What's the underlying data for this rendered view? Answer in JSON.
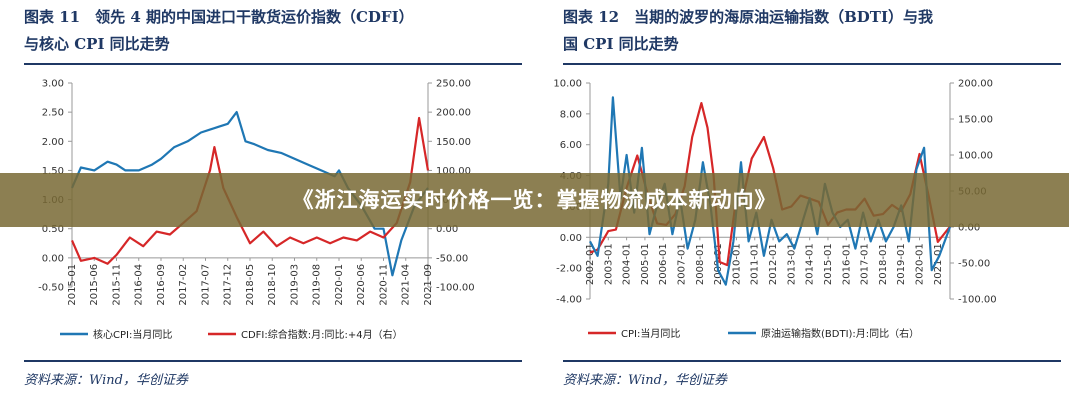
{
  "banner": {
    "text": "《浙江海运实时价格一览：掌握物流成本新动向》"
  },
  "colors": {
    "blue": "#1f77b4",
    "red": "#d62728",
    "navy": "#1f3864",
    "banner": "#786834"
  },
  "charts": [
    {
      "fig_title_line1": "图表 11　领先 4 期的中国进口干散货运价指数（CDFI）",
      "fig_title_line2": "与核心 CPI 同比走势",
      "source": "资料来源：Wind，华创证券"
    },
    {
      "fig_title_line1": "图表 12　当期的波罗的海原油运输指数（BDTI）与我",
      "fig_title_line2": "国 CPI 同比走势",
      "source": "资料来源：Wind，华创证券"
    }
  ],
  "chart_data": [
    {
      "type": "line",
      "title": "",
      "ylim_left": [
        -0.5,
        3.0
      ],
      "ylim_right": [
        -100,
        250
      ],
      "yticks_left": [
        "3.00",
        "2.50",
        "2.00",
        "1.50",
        "1.00",
        "0.50",
        "0.00",
        "-0.50"
      ],
      "yticks_right": [
        "250.00",
        "200.00",
        "150.00",
        "100.00",
        "50.00",
        "0.00",
        "-50.00",
        "-100.00"
      ],
      "x_ticks": [
        "2015-01",
        "2015-06",
        "2015-11",
        "2016-04",
        "2016-09",
        "2017-02",
        "2017-07",
        "2017-12",
        "2018-05",
        "2018-10",
        "2019-03",
        "2019-08",
        "2020-01",
        "2020-06",
        "2020-11",
        "2021-04",
        "2021-09"
      ],
      "x_range": [
        "2015-01",
        "2021-09"
      ],
      "grid": false,
      "legend_position": "bottom",
      "series": [
        {
          "name": "核心CPI:当月同比",
          "axis": "left",
          "color": "#1f77b4",
          "x": [
            "2015-01",
            "2015-03",
            "2015-06",
            "2015-09",
            "2015-11",
            "2016-01",
            "2016-04",
            "2016-07",
            "2016-09",
            "2016-12",
            "2017-03",
            "2017-06",
            "2017-08",
            "2017-10",
            "2017-12",
            "2018-02",
            "2018-04",
            "2018-06",
            "2018-09",
            "2018-12",
            "2019-03",
            "2019-06",
            "2019-09",
            "2019-12",
            "2020-01",
            "2020-03",
            "2020-06",
            "2020-09",
            "2020-11",
            "2021-01",
            "2021-03",
            "2021-06",
            "2021-09"
          ],
          "values": [
            1.2,
            1.55,
            1.5,
            1.65,
            1.6,
            1.5,
            1.5,
            1.6,
            1.7,
            1.9,
            2.0,
            2.15,
            2.2,
            2.25,
            2.3,
            2.5,
            2.0,
            1.95,
            1.85,
            1.8,
            1.7,
            1.6,
            1.5,
            1.4,
            1.5,
            1.2,
            0.9,
            0.5,
            0.5,
            -0.3,
            0.3,
            0.9,
            1.2
          ]
        },
        {
          "name": "CDFI:综合指数:月:同比:+4月（右）",
          "axis": "right",
          "color": "#d62728",
          "x": [
            "2015-01",
            "2015-03",
            "2015-06",
            "2015-09",
            "2015-11",
            "2016-02",
            "2016-05",
            "2016-08",
            "2016-11",
            "2017-02",
            "2017-05",
            "2017-08",
            "2017-09",
            "2017-11",
            "2018-02",
            "2018-05",
            "2018-08",
            "2018-11",
            "2019-02",
            "2019-05",
            "2019-08",
            "2019-11",
            "2020-02",
            "2020-05",
            "2020-08",
            "2020-11",
            "2021-02",
            "2021-05",
            "2021-07",
            "2021-09"
          ],
          "values": [
            -20,
            -55,
            -50,
            -60,
            -45,
            -15,
            -30,
            -5,
            -10,
            10,
            30,
            100,
            140,
            70,
            20,
            -25,
            -5,
            -30,
            -15,
            -25,
            -15,
            -25,
            -15,
            -20,
            -5,
            -15,
            10,
            80,
            190,
            100
          ]
        }
      ]
    },
    {
      "type": "line",
      "title": "",
      "ylim_left": [
        -4.0,
        10.0
      ],
      "ylim_right": [
        -100,
        200
      ],
      "yticks_left": [
        "10.00",
        "8.00",
        "6.00",
        "4.00",
        "2.00",
        "0.00",
        "-2.00",
        "-4.00"
      ],
      "yticks_right": [
        "200.00",
        "150.00",
        "100.00",
        "50.00",
        "0.00",
        "-50.00",
        "-100.00"
      ],
      "x_ticks": [
        "2002-01",
        "2003-01",
        "2004-01",
        "2005-01",
        "2006-01",
        "2007-01",
        "2008-01",
        "2009-01",
        "2010-01",
        "2011-01",
        "2012-01",
        "2013-01",
        "2014-01",
        "2015-01",
        "2016-01",
        "2017-01",
        "2018-01",
        "2019-01",
        "2020-01",
        "2021-01"
      ],
      "x_range": [
        "2002-01",
        "2021-09"
      ],
      "grid": false,
      "legend_position": "bottom",
      "series": [
        {
          "name": "CPI:当月同比",
          "axis": "left",
          "color": "#d62728",
          "x": [
            "2002-01",
            "2002-06",
            "2003-01",
            "2003-06",
            "2004-01",
            "2004-08",
            "2005-03",
            "2005-09",
            "2006-03",
            "2006-09",
            "2007-03",
            "2007-08",
            "2008-02",
            "2008-06",
            "2008-10",
            "2009-02",
            "2009-07",
            "2009-12",
            "2010-06",
            "2010-11",
            "2011-07",
            "2012-01",
            "2012-07",
            "2013-01",
            "2013-07",
            "2014-01",
            "2014-07",
            "2015-01",
            "2015-07",
            "2016-01",
            "2016-07",
            "2017-01",
            "2017-07",
            "2018-01",
            "2018-07",
            "2019-01",
            "2019-07",
            "2020-01",
            "2020-07",
            "2021-01",
            "2021-09"
          ],
          "values": [
            -1.0,
            -0.8,
            0.4,
            0.5,
            3.2,
            5.3,
            2.7,
            0.9,
            0.8,
            1.5,
            3.3,
            6.5,
            8.7,
            7.1,
            4.0,
            -1.6,
            -1.8,
            1.9,
            2.9,
            5.1,
            6.5,
            4.5,
            1.8,
            2.0,
            2.7,
            2.5,
            2.3,
            0.8,
            1.6,
            1.8,
            1.8,
            2.5,
            1.4,
            1.5,
            2.1,
            1.7,
            2.8,
            5.4,
            2.7,
            -0.3,
            0.7
          ]
        },
        {
          "name": "原油运输指数(BDTI):月:同比（右）",
          "axis": "right",
          "color": "#1f77b4",
          "x": [
            "2002-01",
            "2002-06",
            "2003-01",
            "2003-04",
            "2003-09",
            "2004-01",
            "2004-06",
            "2004-11",
            "2005-04",
            "2005-09",
            "2006-02",
            "2006-07",
            "2006-12",
            "2007-05",
            "2007-10",
            "2008-03",
            "2008-08",
            "2009-01",
            "2009-06",
            "2009-11",
            "2010-04",
            "2010-09",
            "2011-02",
            "2011-07",
            "2011-12",
            "2012-05",
            "2012-10",
            "2013-03",
            "2013-08",
            "2014-01",
            "2014-06",
            "2014-11",
            "2015-04",
            "2015-09",
            "2016-02",
            "2016-07",
            "2016-12",
            "2017-05",
            "2017-10",
            "2018-03",
            "2018-08",
            "2019-01",
            "2019-06",
            "2019-11",
            "2020-04",
            "2020-09",
            "2021-02",
            "2021-09"
          ],
          "values": [
            -20,
            -40,
            60,
            180,
            40,
            100,
            20,
            110,
            -10,
            30,
            60,
            -10,
            40,
            -30,
            10,
            90,
            30,
            -60,
            -80,
            -20,
            90,
            -20,
            20,
            -40,
            10,
            -20,
            -10,
            -30,
            5,
            40,
            -10,
            60,
            20,
            0,
            10,
            -30,
            20,
            -20,
            10,
            -20,
            0,
            30,
            -20,
            80,
            110,
            -60,
            -40,
            0
          ]
        }
      ]
    }
  ]
}
